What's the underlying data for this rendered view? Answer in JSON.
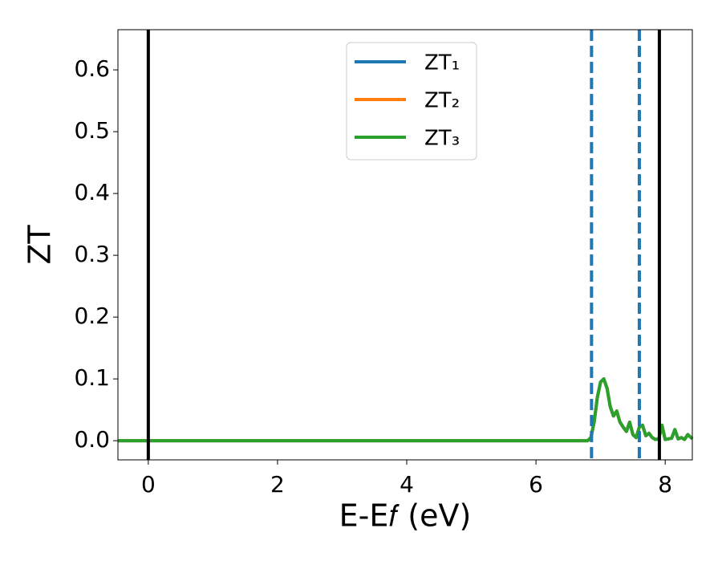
{
  "chart_data": {
    "type": "line",
    "xlabel": "E-E𝑓 (eV)",
    "ylabel": "ZT",
    "x": [
      -0.47,
      6.0,
      6.8,
      6.85,
      6.9,
      6.95,
      7.0,
      7.05,
      7.1,
      7.15,
      7.2,
      7.25,
      7.3,
      7.35,
      7.4,
      7.45,
      7.5,
      7.55,
      7.6,
      7.65,
      7.7,
      7.75,
      7.8,
      7.85,
      7.9,
      7.95,
      8.0,
      8.05,
      8.1,
      8.15,
      8.2,
      8.25,
      8.3,
      8.35,
      8.42
    ],
    "series": [
      {
        "name": "ZT₁",
        "color": "#1f77b4",
        "values": [
          0,
          0,
          0,
          0.005,
          0.03,
          0.07,
          0.095,
          0.1,
          0.085,
          0.055,
          0.04,
          0.048,
          0.03,
          0.022,
          0.015,
          0.03,
          0.01,
          0.005,
          0.022,
          0.025,
          0.008,
          0.012,
          0.005,
          0.002,
          0.003,
          0.025,
          0.002,
          0.003,
          0.004,
          0.018,
          0.003,
          0.005,
          0.002,
          0.01,
          0.003
        ]
      },
      {
        "name": "ZT₂",
        "color": "#ff7f0e",
        "values": [
          0,
          0,
          0,
          0.005,
          0.03,
          0.07,
          0.095,
          0.1,
          0.085,
          0.055,
          0.04,
          0.048,
          0.03,
          0.022,
          0.015,
          0.03,
          0.01,
          0.005,
          0.022,
          0.025,
          0.008,
          0.012,
          0.005,
          0.002,
          0.003,
          0.025,
          0.002,
          0.003,
          0.004,
          0.018,
          0.003,
          0.005,
          0.002,
          0.01,
          0.003
        ]
      },
      {
        "name": "ZT₃",
        "color": "#2ca02c",
        "values": [
          0,
          0,
          0,
          0.005,
          0.03,
          0.07,
          0.095,
          0.1,
          0.085,
          0.055,
          0.04,
          0.048,
          0.03,
          0.022,
          0.015,
          0.03,
          0.01,
          0.005,
          0.022,
          0.025,
          0.008,
          0.012,
          0.005,
          0.002,
          0.003,
          0.025,
          0.002,
          0.003,
          0.004,
          0.018,
          0.003,
          0.005,
          0.002,
          0.01,
          0.003
        ]
      }
    ],
    "vlines": [
      {
        "x": 0,
        "color": "#000000",
        "style": "solid"
      },
      {
        "x": 7.91,
        "color": "#000000",
        "style": "solid"
      },
      {
        "x": 6.86,
        "color": "#1f77b4",
        "style": "dashed"
      },
      {
        "x": 7.6,
        "color": "#1f77b4",
        "style": "dashed"
      }
    ],
    "xlim": [
      -0.47,
      8.42
    ],
    "ylim": [
      -0.031,
      0.665
    ],
    "xticks": [
      0,
      2,
      4,
      6,
      8
    ],
    "yticks": [
      {
        "value": 0,
        "label": "0.0"
      },
      0.1,
      0.2,
      0.3,
      0.4,
      0.5,
      0.6
    ],
    "legend": "upper center",
    "grid": false
  }
}
